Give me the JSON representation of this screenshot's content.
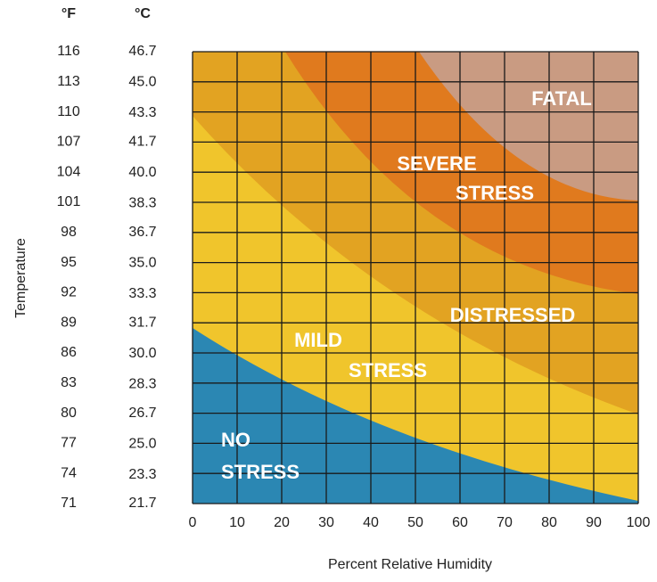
{
  "chart_data": {
    "type": "zone-grid",
    "x_label": "Percent Relative Humidity",
    "y_label": "Temperature",
    "y_unit": "°F",
    "y2_unit": "°C",
    "xlim": [
      0,
      100
    ],
    "xticks": [
      0,
      10,
      20,
      30,
      40,
      50,
      60,
      70,
      80,
      90,
      100
    ],
    "ylim": [
      71,
      116
    ],
    "yticks": [
      116,
      113,
      110,
      107,
      104,
      101,
      98,
      95,
      92,
      89,
      86,
      83,
      80,
      77,
      74,
      71
    ],
    "y2lim": [
      21.7,
      46.7
    ],
    "y2ticks": [
      46.7,
      {
        "value": 45,
        "label": "45.0"
      },
      43.3,
      41.7,
      {
        "value": 40,
        "label": "40.0"
      },
      38.3,
      36.7,
      {
        "value": 35,
        "label": "35.0"
      },
      33.3,
      31.7,
      {
        "value": 30,
        "label": "30.0"
      },
      28.3,
      26.7,
      {
        "value": 25,
        "label": "25.0"
      },
      23.3,
      21.7
    ],
    "grid": true,
    "grid_color": "#1a1a1a",
    "zones": [
      {
        "lines": [
          "MILD",
          "STRESS"
        ],
        "color": "#f0c52c"
      },
      {
        "lines": [
          "DISTRESSED"
        ],
        "color": "#e2a322"
      },
      {
        "lines": [
          "SEVERE",
          "STRESS"
        ],
        "color": "#e07a1e"
      },
      {
        "lines": [
          "FATAL"
        ],
        "color": "#c99b82"
      },
      {
        "lines": [
          "NO",
          "STRESS"
        ],
        "color": "#2b87b3"
      }
    ]
  }
}
